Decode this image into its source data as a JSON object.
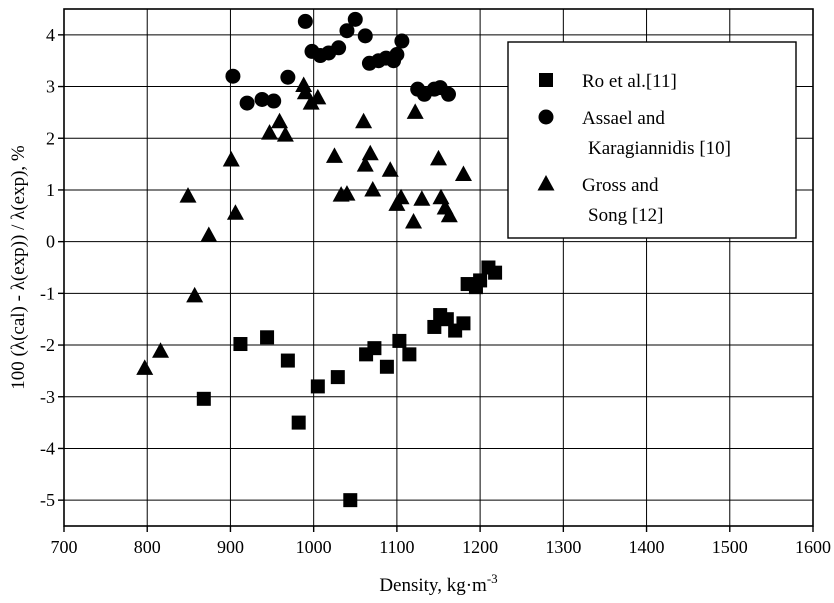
{
  "chart_data": {
    "type": "scatter",
    "title": "",
    "xlabel": "Density, kg·m",
    "xlabel_sup": "-3",
    "ylabel": "100 (λ(cal) - λ(exp)) / λ(exp), %",
    "xlim": [
      700,
      1600
    ],
    "ylim": [
      -5.5,
      4.5
    ],
    "xticks": [
      700,
      800,
      900,
      1000,
      1100,
      1200,
      1300,
      1400,
      1500,
      1600
    ],
    "yticks": [
      -5,
      -4,
      -3,
      -2,
      -1,
      0,
      1,
      2,
      3,
      4
    ],
    "grid": true,
    "legend_position": "top-right",
    "series": [
      {
        "name": "Ro et al.[11]",
        "legend_lines": [
          "Ro et al.[11]"
        ],
        "marker": "square",
        "points": [
          [
            868,
            -3.04
          ],
          [
            912,
            -1.98
          ],
          [
            944,
            -1.85
          ],
          [
            969,
            -2.3
          ],
          [
            982,
            -3.5
          ],
          [
            1005,
            -2.8
          ],
          [
            1029,
            -2.62
          ],
          [
            1044,
            -5.0
          ],
          [
            1063,
            -2.18
          ],
          [
            1073,
            -2.06
          ],
          [
            1088,
            -2.42
          ],
          [
            1103,
            -1.92
          ],
          [
            1115,
            -2.18
          ],
          [
            1145,
            -1.65
          ],
          [
            1152,
            -1.42
          ],
          [
            1160,
            -1.5
          ],
          [
            1170,
            -1.72
          ],
          [
            1180,
            -1.58
          ],
          [
            1185,
            -0.82
          ],
          [
            1195,
            -0.88
          ],
          [
            1200,
            -0.75
          ],
          [
            1210,
            -0.5
          ],
          [
            1218,
            -0.6
          ]
        ]
      },
      {
        "name": "Assael and Karagiannidis [10]",
        "legend_lines": [
          "Assael and",
          "Karagiannidis [10]"
        ],
        "marker": "circle",
        "points": [
          [
            903,
            3.2
          ],
          [
            920,
            2.68
          ],
          [
            938,
            2.75
          ],
          [
            952,
            2.72
          ],
          [
            969,
            3.18
          ],
          [
            990,
            4.26
          ],
          [
            998,
            3.68
          ],
          [
            1008,
            3.6
          ],
          [
            1018,
            3.65
          ],
          [
            1030,
            3.75
          ],
          [
            1040,
            4.08
          ],
          [
            1050,
            4.3
          ],
          [
            1062,
            3.98
          ],
          [
            1067,
            3.45
          ],
          [
            1078,
            3.5
          ],
          [
            1087,
            3.55
          ],
          [
            1096,
            3.5
          ],
          [
            1100,
            3.62
          ],
          [
            1106,
            3.88
          ],
          [
            1125,
            2.95
          ],
          [
            1133,
            2.85
          ],
          [
            1145,
            2.95
          ],
          [
            1152,
            2.98
          ],
          [
            1162,
            2.85
          ]
        ]
      },
      {
        "name": "Gross and Song [12]",
        "legend_lines": [
          "Gross and",
          "Song [12]"
        ],
        "marker": "triangle",
        "points": [
          [
            797,
            -2.45
          ],
          [
            816,
            -2.12
          ],
          [
            849,
            0.88
          ],
          [
            857,
            -1.05
          ],
          [
            874,
            0.12
          ],
          [
            901,
            1.58
          ],
          [
            906,
            0.55
          ],
          [
            947,
            2.1
          ],
          [
            959,
            2.32
          ],
          [
            966,
            2.06
          ],
          [
            988,
            3.02
          ],
          [
            990,
            2.88
          ],
          [
            997,
            2.68
          ],
          [
            1005,
            2.78
          ],
          [
            1025,
            1.65
          ],
          [
            1033,
            0.9
          ],
          [
            1040,
            0.92
          ],
          [
            1060,
            2.32
          ],
          [
            1062,
            1.48
          ],
          [
            1068,
            1.7
          ],
          [
            1071,
            1.0
          ],
          [
            1092,
            1.38
          ],
          [
            1100,
            0.72
          ],
          [
            1105,
            0.85
          ],
          [
            1120,
            0.38
          ],
          [
            1122,
            2.5
          ],
          [
            1130,
            0.82
          ],
          [
            1150,
            1.6
          ],
          [
            1153,
            0.85
          ],
          [
            1158,
            0.65
          ],
          [
            1163,
            0.5
          ],
          [
            1180,
            1.3
          ]
        ]
      }
    ]
  }
}
